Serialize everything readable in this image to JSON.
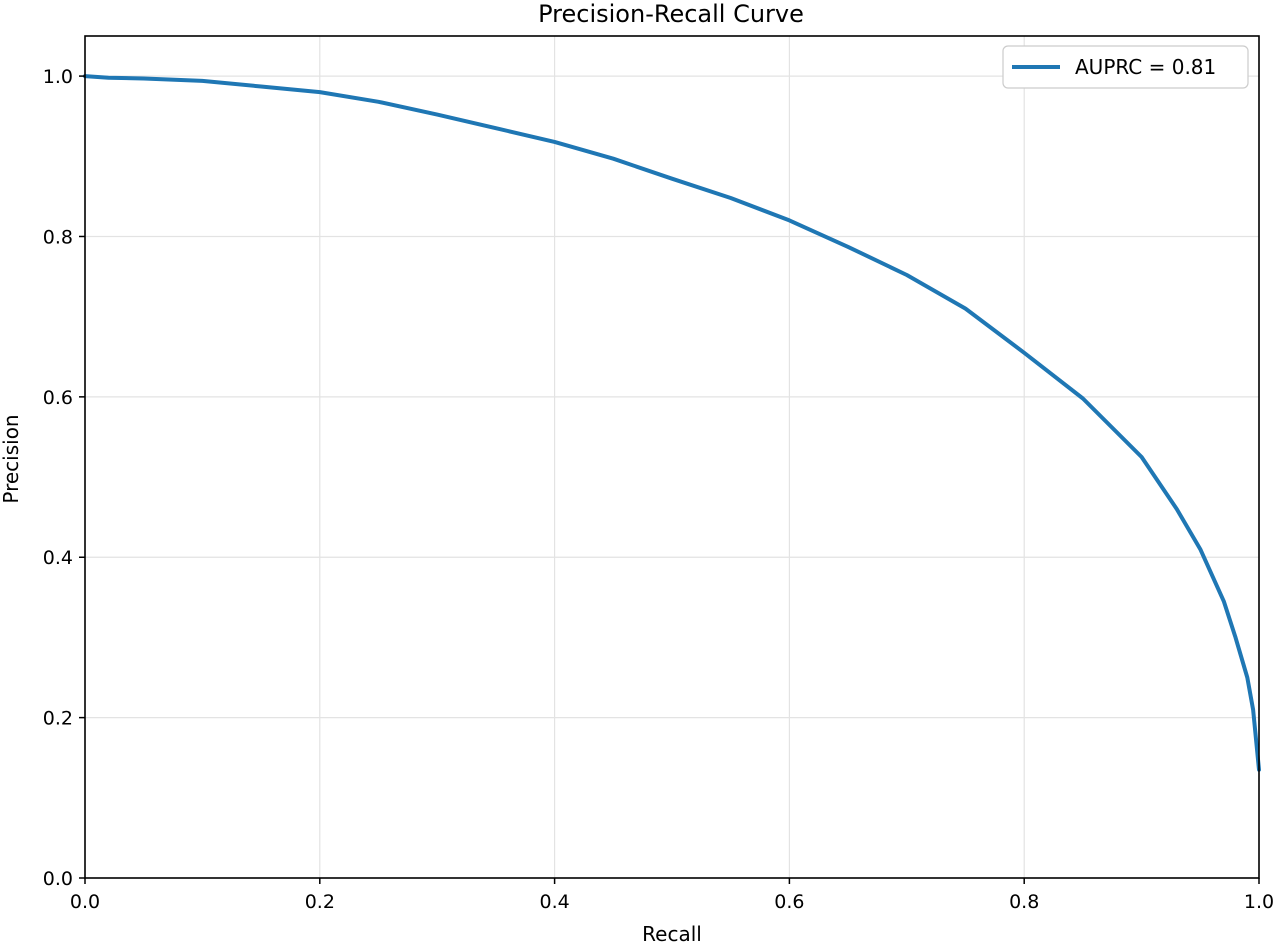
{
  "colors": {
    "series": "#1f77b4",
    "axes": "#000000",
    "grid": "#e3e3e3",
    "background": "#ffffff"
  },
  "chart_data": {
    "type": "line",
    "title": "Precision-Recall Curve",
    "xlabel": "Recall",
    "ylabel": "Precision",
    "xlim": [
      0.0,
      1.0
    ],
    "ylim": [
      0.0,
      1.05
    ],
    "xticks": [
      "0.0",
      "0.2",
      "0.4",
      "0.6",
      "0.8",
      "1.0"
    ],
    "yticks": [
      "0.0",
      "0.2",
      "0.4",
      "0.6",
      "0.8",
      "1.0"
    ],
    "grid": true,
    "legend_position": "top-right",
    "series": [
      {
        "name": "AUPRC = 0.81",
        "color": "#1f77b4",
        "x": [
          0.0,
          0.02,
          0.05,
          0.1,
          0.15,
          0.2,
          0.25,
          0.3,
          0.35,
          0.4,
          0.45,
          0.5,
          0.55,
          0.6,
          0.65,
          0.7,
          0.75,
          0.8,
          0.85,
          0.9,
          0.93,
          0.95,
          0.97,
          0.98,
          0.99,
          0.995,
          1.0
        ],
        "y": [
          1.0,
          0.998,
          0.997,
          0.994,
          0.987,
          0.98,
          0.968,
          0.952,
          0.935,
          0.918,
          0.897,
          0.872,
          0.848,
          0.82,
          0.787,
          0.752,
          0.71,
          0.655,
          0.598,
          0.525,
          0.46,
          0.41,
          0.345,
          0.3,
          0.25,
          0.21,
          0.135
        ]
      }
    ]
  }
}
